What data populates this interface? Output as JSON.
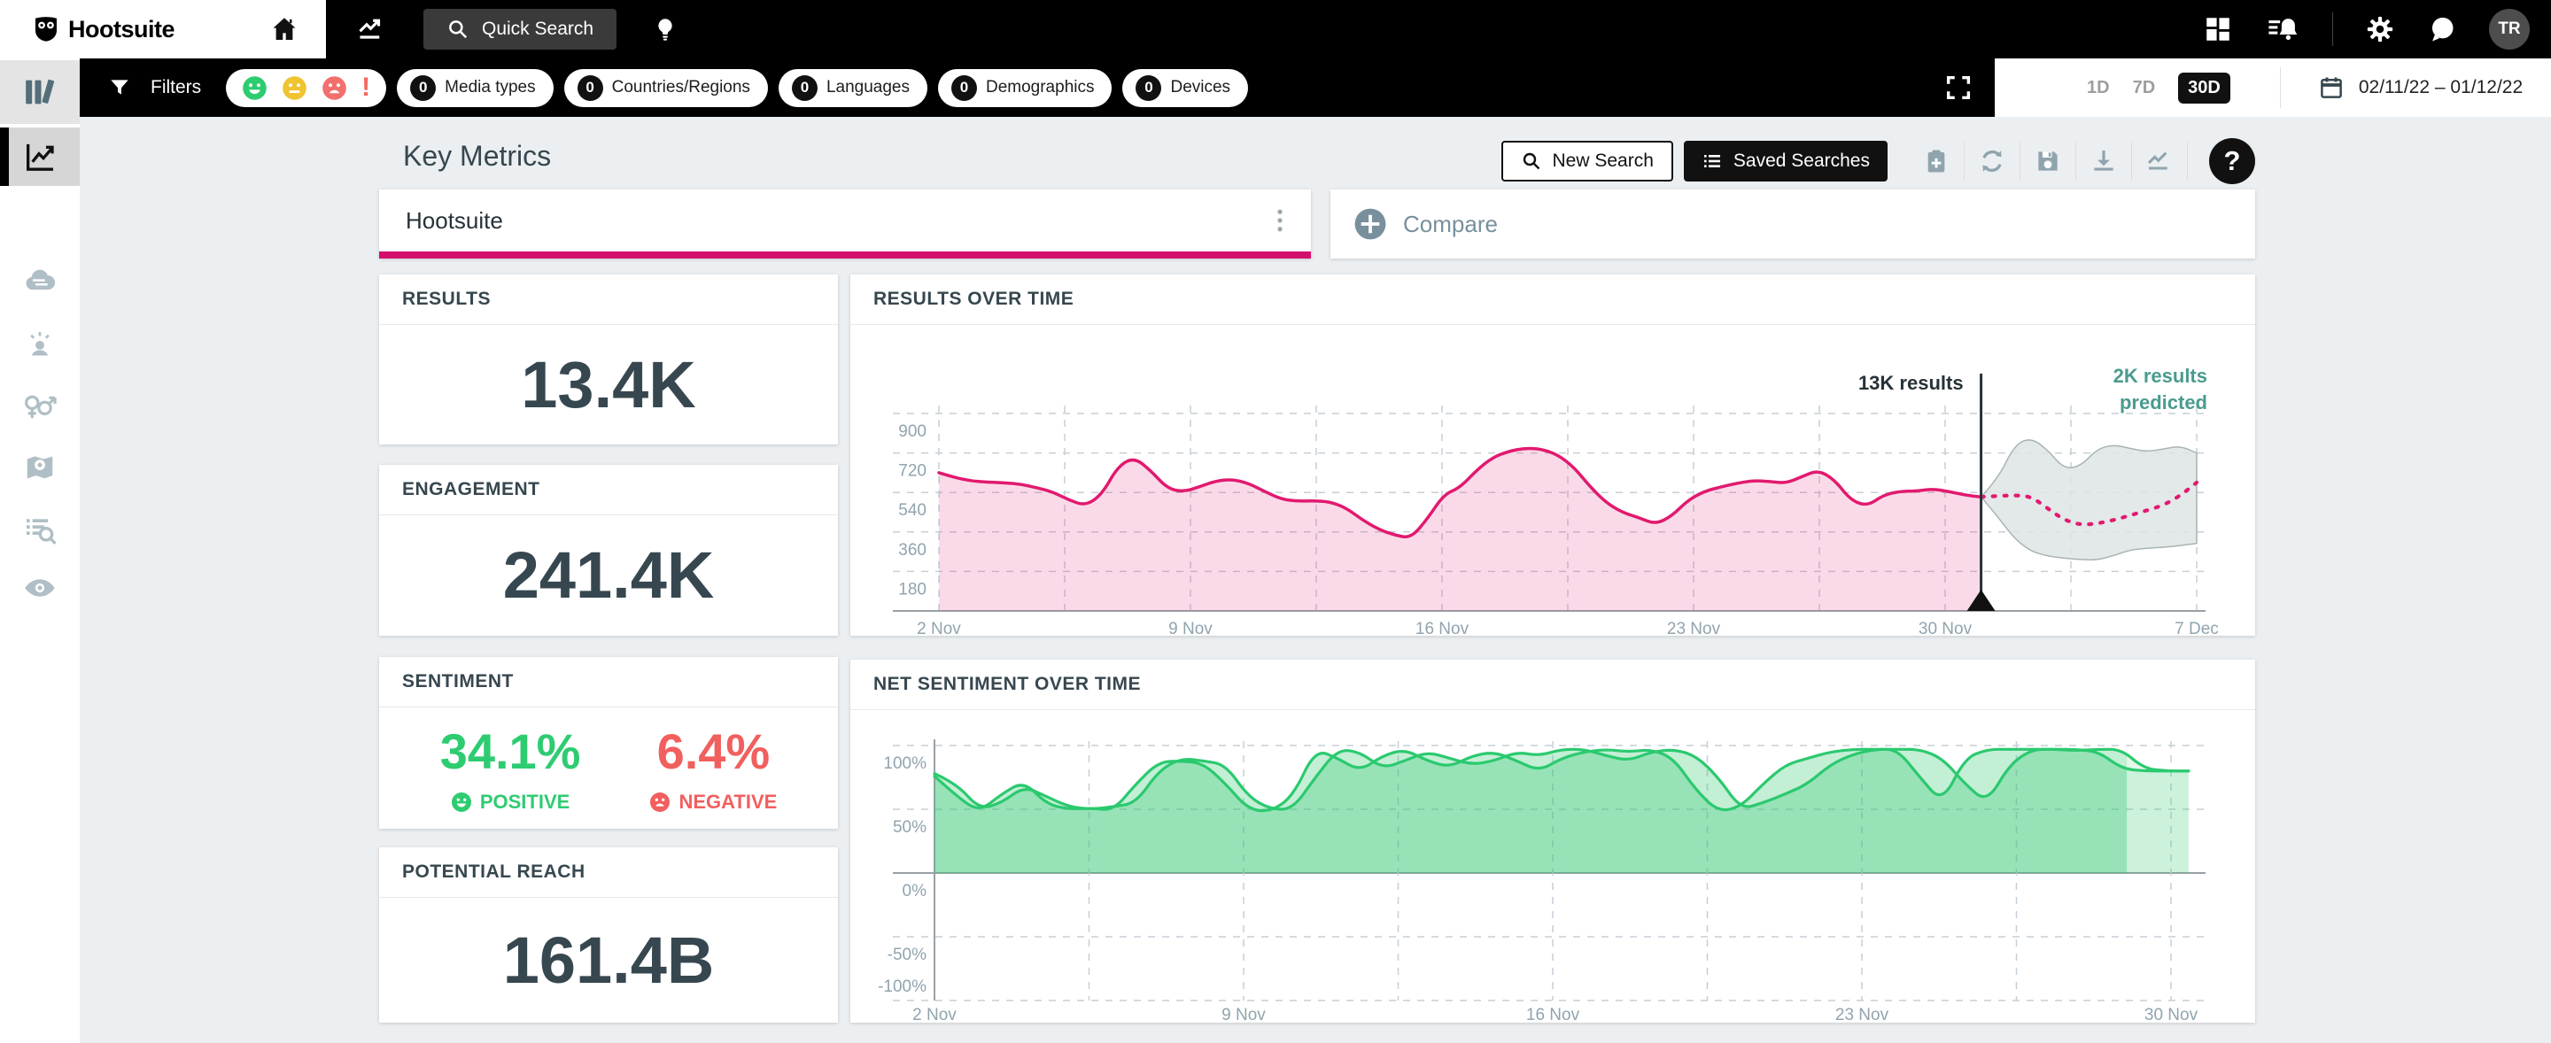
{
  "topbar": {
    "brand": "Hootsuite",
    "quick_search_label": "Quick Search",
    "avatar_initials": "TR"
  },
  "filter_bar": {
    "filters_label": "Filters",
    "pills": [
      {
        "count": "0",
        "label": "Media types"
      },
      {
        "count": "0",
        "label": "Countries/Regions"
      },
      {
        "count": "0",
        "label": "Languages"
      },
      {
        "count": "0",
        "label": "Demographics"
      },
      {
        "count": "0",
        "label": "Devices"
      }
    ],
    "range_options": [
      "1D",
      "7D",
      "30D"
    ],
    "selected_range": "30D",
    "date_range": "02/11/22 – 01/12/22"
  },
  "page": {
    "title": "Key Metrics",
    "new_search_label": "New Search",
    "saved_searches_label": "Saved Searches",
    "help_label": "?"
  },
  "query": {
    "value": "Hootsuite",
    "compare_label": "Compare"
  },
  "metrics": {
    "results": {
      "label": "RESULTS",
      "value": "13.4K"
    },
    "engagement": {
      "label": "ENGAGEMENT",
      "value": "241.4K"
    },
    "sentiment": {
      "label": "SENTIMENT",
      "positive_value": "34.1%",
      "positive_label": "POSITIVE",
      "negative_value": "6.4%",
      "negative_label": "NEGATIVE",
      "positive_color": "#2ecc71",
      "negative_color": "#f15f5f"
    },
    "reach": {
      "label": "POTENTIAL REACH",
      "value": "161.4B"
    }
  },
  "colors": {
    "accent_pink": "#e2196f",
    "underline_pink": "#d4106e",
    "green": "#2bc96f",
    "teal": "#4a9b8f",
    "slate": "#37474f"
  },
  "chart_data": [
    {
      "type": "area",
      "title": "RESULTS OVER TIME",
      "x_axis": {
        "tick_days": [
          0,
          7,
          14,
          21,
          28,
          35
        ],
        "tick_labels": [
          "2 Nov",
          "9 Nov",
          "16 Nov",
          "23 Nov",
          "30 Nov",
          "7 Dec"
        ],
        "minor_grid_step_days": 3.5,
        "day_span": [
          0,
          35
        ]
      },
      "y_axis": {
        "ticks": [
          900,
          720,
          540,
          360,
          180
        ],
        "min": 0,
        "max": 900
      },
      "series": [
        {
          "name": "results",
          "color": "#e2196f",
          "day_span": [
            0,
            29
          ],
          "values": [
            630,
            608,
            592,
            587,
            584,
            578,
            562,
            542,
            505,
            480,
            530,
            660,
            700,
            640,
            560,
            542,
            566,
            592,
            600,
            582,
            545,
            510,
            500,
            502,
            498,
            470,
            415,
            372,
            345,
            332,
            420,
            530,
            562,
            640,
            700,
            728,
            742,
            738,
            712,
            655,
            565,
            492,
            448,
            425,
            395,
            432,
            505,
            545,
            565,
            582,
            594,
            590,
            582,
            612,
            642,
            598,
            505,
            478,
            528,
            545,
            546,
            556,
            545,
            528,
            520
          ]
        }
      ],
      "prediction": {
        "start_day": 29,
        "end_day": 35,
        "line": [
          520,
          524,
          527,
          522,
          468,
          415,
          392,
          398,
          414,
          436,
          458,
          482,
          525,
          585
        ],
        "band_upper": [
          520,
          600,
          755,
          790,
          735,
          648,
          660,
          738,
          758,
          740,
          726,
          738,
          752,
          720
        ],
        "band_lower": [
          520,
          430,
          330,
          272,
          250,
          240,
          234,
          232,
          252,
          278,
          286,
          290,
          298,
          308
        ]
      },
      "now_line_day": 29,
      "annotations": {
        "now": "13K results",
        "predicted": [
          "2K results",
          "predicted"
        ]
      }
    },
    {
      "type": "area",
      "title": "NET SENTIMENT OVER TIME",
      "x_axis": {
        "tick_days": [
          0,
          7,
          14,
          21,
          28
        ],
        "tick_labels": [
          "2 Nov",
          "9 Nov",
          "16 Nov",
          "23 Nov",
          "30 Nov"
        ],
        "minor_grid_step_days": 3.5,
        "day_span": [
          0,
          28.4
        ]
      },
      "y_axis": {
        "ticks_pct": [
          100,
          50,
          0,
          -50,
          -100
        ],
        "tick_labels": [
          "100%",
          "50%",
          "0%",
          "-50%",
          "-100%"
        ]
      },
      "series": [
        {
          "name": "net sentiment",
          "color": "#2bc96f",
          "day_span": [
            0,
            28.4
          ],
          "values": [
            76,
            60,
            48,
            62,
            72,
            54,
            50,
            51,
            49,
            70,
            87,
            88,
            86,
            70,
            50,
            48,
            60,
            97,
            90,
            80,
            92,
            97,
            88,
            83,
            92,
            95,
            88,
            80,
            90,
            95,
            97,
            95,
            97,
            90,
            65,
            48,
            52,
            70,
            85,
            90,
            95,
            97,
            97,
            97,
            75,
            55,
            90,
            97,
            97,
            97,
            97,
            97,
            95,
            82,
            80,
            80,
            80
          ]
        },
        {
          "name": "net sentiment (smoothed)",
          "color": "#2bc96f",
          "day_span": [
            0,
            28.4
          ],
          "values": [
            78,
            70,
            50,
            55,
            68,
            60,
            52,
            50,
            52,
            55,
            80,
            90,
            88,
            85,
            60,
            50,
            50,
            75,
            97,
            95,
            82,
            88,
            95,
            90,
            85,
            88,
            95,
            92,
            97,
            97,
            92,
            88,
            95,
            97,
            92,
            75,
            50,
            55,
            62,
            70,
            85,
            93,
            97,
            97,
            97,
            90,
            70,
            55,
            85,
            97,
            97,
            96,
            97,
            97,
            82,
            80,
            80
          ]
        }
      ],
      "fade_after_day": 27
    }
  ]
}
